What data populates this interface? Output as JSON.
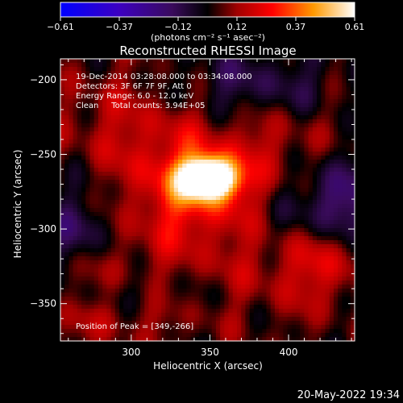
{
  "chart_data": {
    "type": "heatmap",
    "title": "Reconstructed RHESSI Image",
    "xlabel": "Heliocentric X (arcsec)",
    "ylabel": "Heliocentric Y (arcsec)",
    "xlim": [
      255,
      442
    ],
    "ylim": [
      -375,
      -186
    ],
    "x_ticks": [
      300,
      350,
      400
    ],
    "y_ticks": [
      -200,
      -250,
      -300,
      -350
    ],
    "colorbar": {
      "ticks": [
        "-0.61",
        "-0.37",
        "-0.12",
        "0.12",
        "0.37",
        "0.61"
      ],
      "label": "(photons cm⁻² s⁻¹ asec⁻²)",
      "min": -0.61,
      "max": 0.61
    },
    "annotations": [
      "19-Dec-2014 03:28:08.000 to 03:34:08.000",
      "Detectors: 3F 6F 7F 9F, Att 0",
      "Energy Range: 6.0 - 12.0 keV",
      "Clean     Total counts: 3.94E+05"
    ],
    "peak_label": "Position of Peak = [349,-266]",
    "peak": {
      "x": 349,
      "y": -266,
      "value": 0.61
    },
    "features": [
      {
        "x": 349,
        "y": -266,
        "amp": 0.78,
        "sx": 12,
        "sy": 9
      },
      {
        "x": 342,
        "y": -270,
        "amp": 0.22,
        "sx": 28,
        "sy": 20
      },
      {
        "x": 332,
        "y": -300,
        "amp": 0.12,
        "sx": 40,
        "sy": 24
      },
      {
        "x": 310,
        "y": -232,
        "amp": 0.13,
        "sx": 40,
        "sy": 26
      },
      {
        "x": 396,
        "y": -238,
        "amp": 0.08,
        "sx": 26,
        "sy": 18
      },
      {
        "x": 423,
        "y": -318,
        "amp": 0.13,
        "sx": 20,
        "sy": 16
      },
      {
        "x": 405,
        "y": -337,
        "amp": 0.08,
        "sx": 35,
        "sy": 16
      },
      {
        "x": 290,
        "y": -360,
        "amp": 0.08,
        "sx": 40,
        "sy": 12
      },
      {
        "x": 338,
        "y": -204,
        "amp": 0.05,
        "sx": 40,
        "sy": 12
      },
      {
        "x": 274,
        "y": -326,
        "amp": 0.05,
        "sx": 20,
        "sy": 20
      },
      {
        "x": 265,
        "y": -305,
        "amp": -0.18,
        "sx": 18,
        "sy": 14
      },
      {
        "x": 368,
        "y": -204,
        "amp": -0.2,
        "sx": 40,
        "sy": 16
      },
      {
        "x": 433,
        "y": -278,
        "amp": -0.2,
        "sx": 16,
        "sy": 22
      },
      {
        "x": 410,
        "y": -290,
        "amp": -0.08,
        "sx": 30,
        "sy": 14
      },
      {
        "x": 275,
        "y": -280,
        "amp": -0.08,
        "sx": 22,
        "sy": 18
      },
      {
        "x": 300,
        "y": -345,
        "amp": -0.06,
        "sx": 40,
        "sy": 10
      }
    ]
  },
  "timestamp": "20-May-2022 19:34"
}
